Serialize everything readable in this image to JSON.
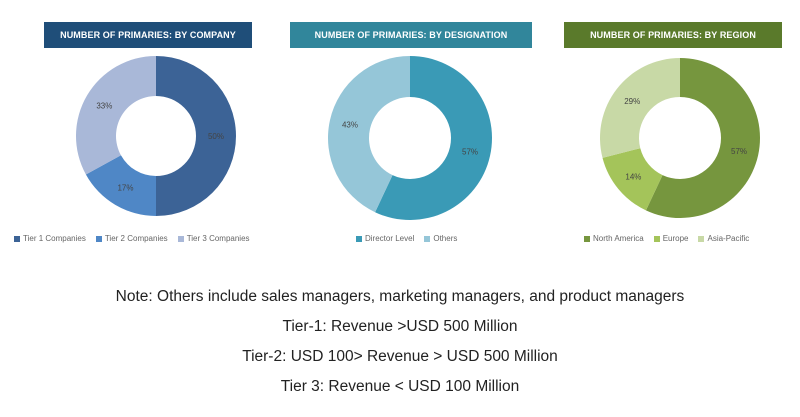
{
  "chart_data": [
    {
      "type": "pie",
      "title": "NUMBER OF PRIMARIES: BY COMPANY",
      "header_color": "#1f4e79",
      "categories": [
        "Tier 1 Companies",
        "Tier 2 Companies",
        "Tier 3 Companies"
      ],
      "values": [
        50,
        17,
        33
      ],
      "labels": [
        "50%",
        "17%",
        "33%"
      ],
      "colors": [
        "#3c6396",
        "#4f87c6",
        "#a9b8d8"
      ]
    },
    {
      "type": "pie",
      "title": "NUMBER OF PRIMARIES: BY DESIGNATION",
      "header_color": "#31869b",
      "categories": [
        "Director Level",
        "Others"
      ],
      "values": [
        57,
        43
      ],
      "labels": [
        "57%",
        "43%"
      ],
      "colors": [
        "#3a9ab6",
        "#95c6d8"
      ]
    },
    {
      "type": "pie",
      "title": "NUMBER OF PRIMARIES: BY REGION",
      "header_color": "#5a7a2b",
      "categories": [
        "North America",
        "Europe",
        "Asia-Pacific"
      ],
      "values": [
        57,
        14,
        29
      ],
      "labels": [
        "57%",
        "14%",
        "29%"
      ],
      "colors": [
        "#76963e",
        "#a4c45a",
        "#c8d9a6"
      ]
    }
  ],
  "notes": [
    "Note: Others include sales managers, marketing managers, and product managers",
    "Tier-1: Revenue >USD 500 Million",
    "Tier-2: USD 100> Revenue > USD 500 Million",
    "Tier 3: Revenue < USD 100 Million"
  ]
}
